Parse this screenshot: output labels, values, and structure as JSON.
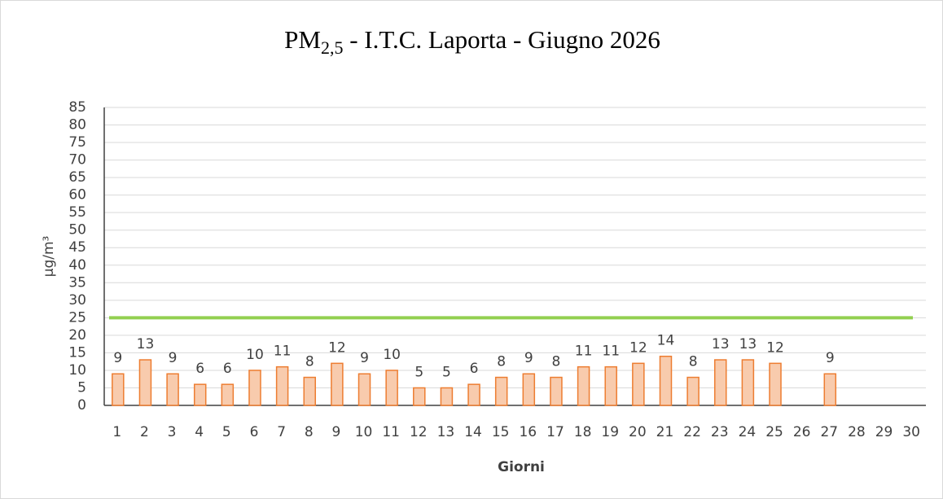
{
  "chart_data": {
    "type": "bar",
    "title": {
      "main": "PM",
      "subscript": "2,5",
      "rest": " - I.T.C. Laporta - Giugno 2026"
    },
    "x_label": "Giorni",
    "y_label": "µg/m³",
    "categories": [
      "1",
      "2",
      "3",
      "4",
      "5",
      "6",
      "7",
      "8",
      "9",
      "10",
      "11",
      "12",
      "13",
      "14",
      "15",
      "16",
      "17",
      "18",
      "19",
      "20",
      "21",
      "22",
      "23",
      "24",
      "25",
      "26",
      "27",
      "28",
      "29",
      "30"
    ],
    "values": [
      9,
      13,
      9,
      6,
      6,
      10,
      11,
      8,
      12,
      9,
      10,
      5,
      5,
      6,
      8,
      9,
      8,
      11,
      11,
      12,
      14,
      8,
      13,
      13,
      12,
      null,
      9,
      null,
      null,
      null
    ],
    "color": "#f8cbad",
    "edge_color": "#ed7d31",
    "reference_line": {
      "value": 25,
      "color": "#92d050"
    },
    "ylim": [
      0,
      85
    ],
    "yticks": [
      0,
      5,
      10,
      15,
      20,
      25,
      30,
      35,
      40,
      45,
      50,
      55,
      60,
      65,
      70,
      75,
      80,
      85
    ],
    "grid": true
  }
}
